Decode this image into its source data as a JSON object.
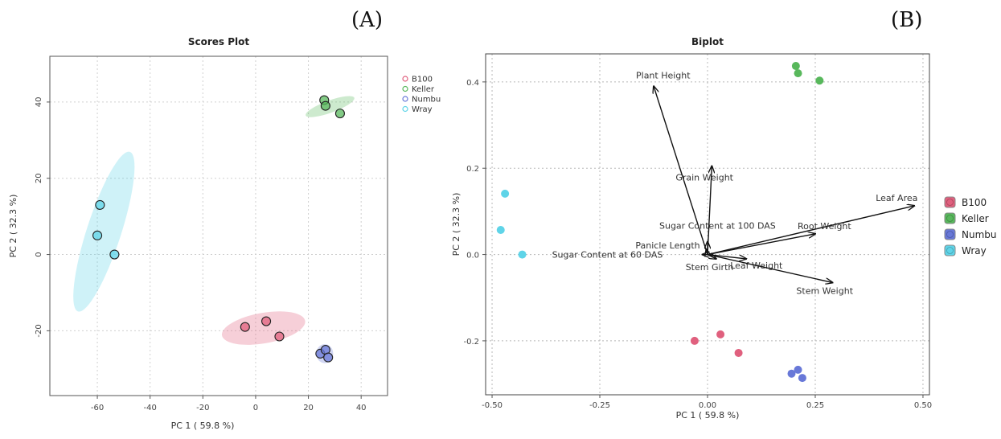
{
  "panels": {
    "a_label": "(A)",
    "b_label": "(B)"
  },
  "colors": {
    "B100": "#e0607e",
    "Keller": "#58b85c",
    "Numbu": "#6878d8",
    "Wray": "#5fd4e8"
  },
  "chart_data": [
    {
      "type": "scatter",
      "title": "Scores Plot",
      "xlabel": "PC 1 ( 59.8 %)",
      "ylabel": "PC 2 ( 32.3 %)",
      "xlim": [
        -78,
        50
      ],
      "ylim": [
        -37,
        52
      ],
      "xticks": [
        -60,
        -40,
        -20,
        0,
        20,
        40
      ],
      "yticks": [
        -20,
        0,
        20,
        40
      ],
      "grid": true,
      "legend_position": "right",
      "series": [
        {
          "name": "B100",
          "color": "#e0607e",
          "points": [
            [
              -4,
              -19
            ],
            [
              4,
              -17.5
            ],
            [
              9,
              -21.5
            ]
          ]
        },
        {
          "name": "Keller",
          "color": "#58b85c",
          "points": [
            [
              26,
              40.5
            ],
            [
              26.5,
              39
            ],
            [
              32,
              37
            ]
          ]
        },
        {
          "name": "Numbu",
          "color": "#6878d8",
          "points": [
            [
              24.5,
              -26
            ],
            [
              26.5,
              -25
            ],
            [
              27.5,
              -27
            ]
          ]
        },
        {
          "name": "Wray",
          "color": "#5fd4e8",
          "points": [
            [
              -59,
              13
            ],
            [
              -60,
              5
            ],
            [
              -53.5,
              0
            ]
          ]
        }
      ],
      "ellipses": [
        {
          "group": "B100",
          "cx": 3,
          "cy": -19.3,
          "rx": 16,
          "ry": 4,
          "angle": -10
        },
        {
          "group": "Keller",
          "cx": 28.2,
          "cy": 38.8,
          "rx": 9.8,
          "ry": 1.6,
          "angle": -20
        },
        {
          "group": "Numbu",
          "cx": 26.2,
          "cy": -26,
          "rx": 3.2,
          "ry": 2.5,
          "angle": 0
        },
        {
          "group": "Wray",
          "cx": -57.5,
          "cy": 6,
          "rx": 6.5,
          "ry": 22,
          "angle": 18
        }
      ]
    },
    {
      "type": "scatter",
      "title": "Biplot",
      "xlabel": "PC 1 ( 59.8 %)",
      "ylabel": "PC 2 ( 32.3 %)",
      "xlim": [
        -0.515,
        0.515
      ],
      "ylim": [
        -0.325,
        0.465
      ],
      "xticks": [
        -0.5,
        -0.25,
        0.0,
        0.25,
        0.5
      ],
      "xtick_labels": [
        "-0.50",
        "-0.25",
        "0.00",
        "0.25",
        "0.50"
      ],
      "yticks": [
        -0.2,
        0.0,
        0.2,
        0.4
      ],
      "ytick_labels": [
        "-0.2",
        "0.0",
        "0.2",
        "0.4"
      ],
      "grid": true,
      "legend_position": "right",
      "series": [
        {
          "name": "B100",
          "color": "#e0607e",
          "points": [
            [
              -0.03,
              -0.2
            ],
            [
              0.03,
              -0.185
            ],
            [
              0.072,
              -0.228
            ]
          ]
        },
        {
          "name": "Keller",
          "color": "#58b85c",
          "points": [
            [
              0.205,
              0.437
            ],
            [
              0.21,
              0.42
            ],
            [
              0.26,
              0.403
            ]
          ]
        },
        {
          "name": "Numbu",
          "color": "#6878d8",
          "points": [
            [
              0.195,
              -0.276
            ],
            [
              0.21,
              -0.267
            ],
            [
              0.22,
              -0.286
            ]
          ]
        },
        {
          "name": "Wray",
          "color": "#5fd4e8",
          "points": [
            [
              -0.47,
              0.141
            ],
            [
              -0.48,
              0.057
            ],
            [
              -0.43,
              0.0
            ]
          ]
        }
      ],
      "loadings": [
        {
          "name": "Plant Height",
          "x": -0.125,
          "y": 0.39
        },
        {
          "name": "Grain Weight",
          "x": 0.01,
          "y": 0.205
        },
        {
          "name": "Leaf Area",
          "x": 0.48,
          "y": 0.113
        },
        {
          "name": "Root Weight",
          "x": 0.25,
          "y": 0.048
        },
        {
          "name": "Sugar Content at 100 DAS",
          "x": 0.0,
          "y": 0.03
        },
        {
          "name": "Panicle Length",
          "x": -0.003,
          "y": 0.012
        },
        {
          "name": "Sugar Content at 60 DAS",
          "x": -0.012,
          "y": 0.0
        },
        {
          "name": "Stem Girth",
          "x": 0.02,
          "y": -0.01
        },
        {
          "name": "Leaf Weight",
          "x": 0.09,
          "y": -0.01
        },
        {
          "name": "Stem Weight",
          "x": 0.29,
          "y": -0.065
        }
      ]
    }
  ]
}
